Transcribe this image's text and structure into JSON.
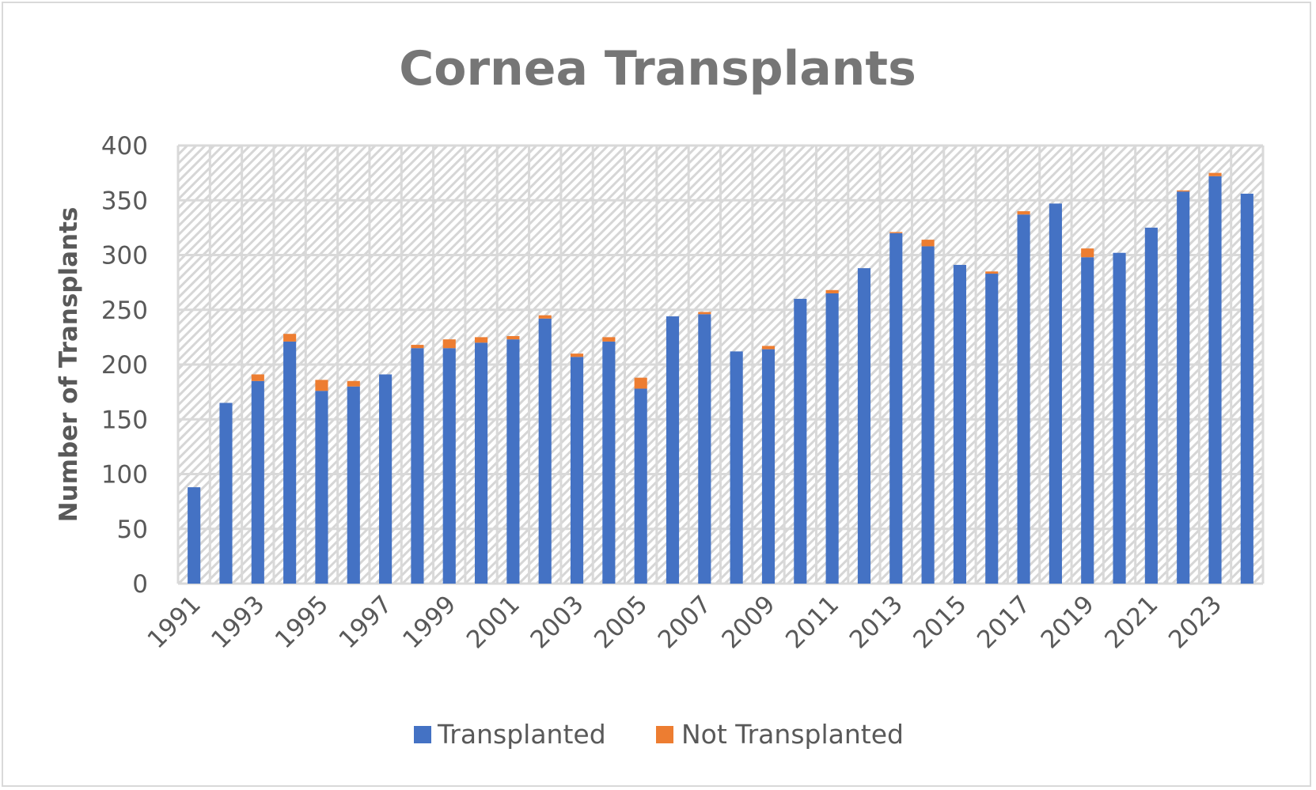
{
  "chart_data": {
    "type": "bar",
    "stacked": true,
    "title": "Cornea Transplants",
    "xlabel": "",
    "ylabel": "Number of Transplants",
    "ylim": [
      0,
      400
    ],
    "yticks": [
      0,
      50,
      100,
      150,
      200,
      250,
      300,
      350,
      400
    ],
    "grid": true,
    "legend": "bottom",
    "categories": [
      1991,
      1992,
      1993,
      1994,
      1995,
      1996,
      1997,
      1998,
      1999,
      2000,
      2001,
      2002,
      2003,
      2004,
      2005,
      2006,
      2007,
      2008,
      2009,
      2010,
      2011,
      2012,
      2013,
      2014,
      2015,
      2016,
      2017,
      2018,
      2019,
      2020,
      2021,
      2022,
      2023,
      2024
    ],
    "xtick_labels": [
      "1991",
      "1993",
      "1995",
      "1997",
      "1999",
      "2001",
      "2003",
      "2005",
      "2007",
      "2009",
      "2011",
      "2013",
      "2015",
      "2017",
      "2019",
      "2021",
      "2023"
    ],
    "series": [
      {
        "name": "Transplanted",
        "color": "#4472c4",
        "values": [
          88,
          165,
          185,
          221,
          176,
          180,
          191,
          215,
          215,
          220,
          223,
          242,
          207,
          221,
          178,
          244,
          246,
          212,
          214,
          260,
          265,
          288,
          320,
          308,
          291,
          283,
          337,
          347,
          298,
          302,
          325,
          358,
          372,
          356
        ]
      },
      {
        "name": "Not Transplanted",
        "color": "#ed7d31",
        "values": [
          0,
          0,
          6,
          7,
          10,
          5,
          0,
          3,
          8,
          5,
          3,
          3,
          3,
          4,
          10,
          0,
          2,
          0,
          3,
          0,
          3,
          0,
          1,
          6,
          0,
          2,
          3,
          0,
          8,
          0,
          0,
          1,
          3,
          0
        ]
      }
    ]
  }
}
